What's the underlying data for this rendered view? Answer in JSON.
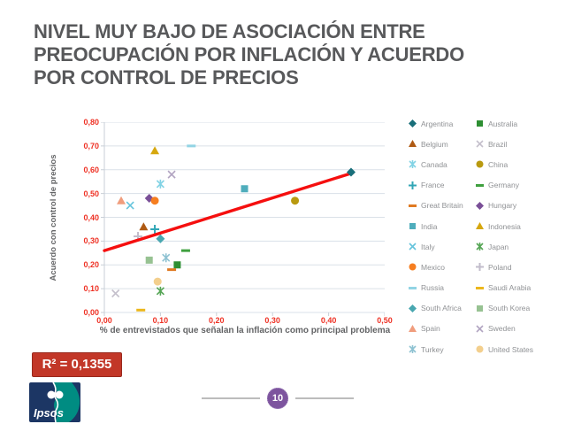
{
  "slide": {
    "title_lines": [
      "NIVEL MUY BAJO DE ASOCIACIÓN ENTRE",
      "PREOCUPACIÓN POR INFLACIÓN Y ACUERDO",
      "POR CONTROL DE PRECIOS"
    ],
    "r_squared_label": "R² = 0,1355",
    "page_number": "10",
    "logo_text": "Ipsos"
  },
  "colors": {
    "title_gray": "#58595b",
    "axis_tick_red": "#ee3124",
    "trendline_red": "#f50f0f",
    "gridline": "#dae1e8",
    "axis_line": "#c9cfd7",
    "r2_box_bg": "#c23728",
    "page_badge_purple": "#7d549e",
    "logo_navy": "#1c3664",
    "logo_teal": "#008c82"
  },
  "chart_data": {
    "type": "scatter",
    "title": "",
    "xlabel": "% de entrevistados que señalan la inflación como principal problema",
    "ylabel": "Acuerdo con control de precios",
    "xlim": [
      0,
      0.5
    ],
    "ylim": [
      0,
      0.8
    ],
    "x_ticks": [
      "0,00",
      "0,10",
      "0,20",
      "0,30",
      "0,40",
      "0,50"
    ],
    "y_ticks": [
      "0,00",
      "0,10",
      "0,20",
      "0,30",
      "0,40",
      "0,50",
      "0,60",
      "0,70",
      "0,80"
    ],
    "grid": "horizontal",
    "legend_position": "right",
    "r_squared": 0.1355,
    "trendline": {
      "x1": 0,
      "y1": 0.26,
      "x2": 0.443,
      "y2": 0.587
    },
    "points": [
      {
        "name": "Argentina",
        "x": 0.44,
        "y": 0.59,
        "marker": "diamond",
        "color": "#196f7a"
      },
      {
        "name": "Australia",
        "x": 0.13,
        "y": 0.2,
        "marker": "square",
        "color": "#2e8f33"
      },
      {
        "name": "Belgium",
        "x": 0.07,
        "y": 0.36,
        "marker": "triangle",
        "color": "#af5a13"
      },
      {
        "name": "Brazil",
        "x": 0.02,
        "y": 0.08,
        "marker": "x",
        "color": "#c5c0cc"
      },
      {
        "name": "Canada",
        "x": 0.1,
        "y": 0.54,
        "marker": "asterisk",
        "color": "#82d3e5"
      },
      {
        "name": "China",
        "x": 0.34,
        "y": 0.47,
        "marker": "circle",
        "color": "#b99a10"
      },
      {
        "name": "France",
        "x": 0.09,
        "y": 0.35,
        "marker": "plus",
        "color": "#31a6b6"
      },
      {
        "name": "Germany",
        "x": 0.145,
        "y": 0.26,
        "marker": "dash",
        "color": "#3fa03f"
      },
      {
        "name": "Great Britain",
        "x": 0.12,
        "y": 0.18,
        "marker": "dash",
        "color": "#e07a22"
      },
      {
        "name": "Hungary",
        "x": 0.08,
        "y": 0.48,
        "marker": "diamond",
        "color": "#7a4f97"
      },
      {
        "name": "India",
        "x": 0.25,
        "y": 0.52,
        "marker": "square",
        "color": "#4fadbc"
      },
      {
        "name": "Indonesia",
        "x": 0.09,
        "y": 0.68,
        "marker": "triangle",
        "color": "#d6a70e"
      },
      {
        "name": "Italy",
        "x": 0.046,
        "y": 0.45,
        "marker": "x",
        "color": "#64c3dc"
      },
      {
        "name": "Japan",
        "x": 0.1,
        "y": 0.09,
        "marker": "asterisk",
        "color": "#55a555"
      },
      {
        "name": "Mexico",
        "x": 0.09,
        "y": 0.47,
        "marker": "circle",
        "color": "#f67e20"
      },
      {
        "name": "Poland",
        "x": 0.06,
        "y": 0.32,
        "marker": "plus",
        "color": "#c2bccb"
      },
      {
        "name": "Russia",
        "x": 0.155,
        "y": 0.7,
        "marker": "dash",
        "color": "#92d4e4"
      },
      {
        "name": "Saudi Arabia",
        "x": 0.065,
        "y": 0.01,
        "marker": "dash",
        "color": "#ecb71c"
      },
      {
        "name": "South Africa",
        "x": 0.1,
        "y": 0.31,
        "marker": "diamond",
        "color": "#49a7b0"
      },
      {
        "name": "South Korea",
        "x": 0.08,
        "y": 0.22,
        "marker": "square",
        "color": "#97c292"
      },
      {
        "name": "Spain",
        "x": 0.03,
        "y": 0.47,
        "marker": "triangle",
        "color": "#f09d7d"
      },
      {
        "name": "Sweden",
        "x": 0.12,
        "y": 0.58,
        "marker": "x",
        "color": "#b2a5c2"
      },
      {
        "name": "Turkey",
        "x": 0.11,
        "y": 0.23,
        "marker": "asterisk",
        "color": "#8ec2d2"
      },
      {
        "name": "United States",
        "x": 0.095,
        "y": 0.13,
        "marker": "circle",
        "color": "#f3cf8d"
      }
    ]
  }
}
